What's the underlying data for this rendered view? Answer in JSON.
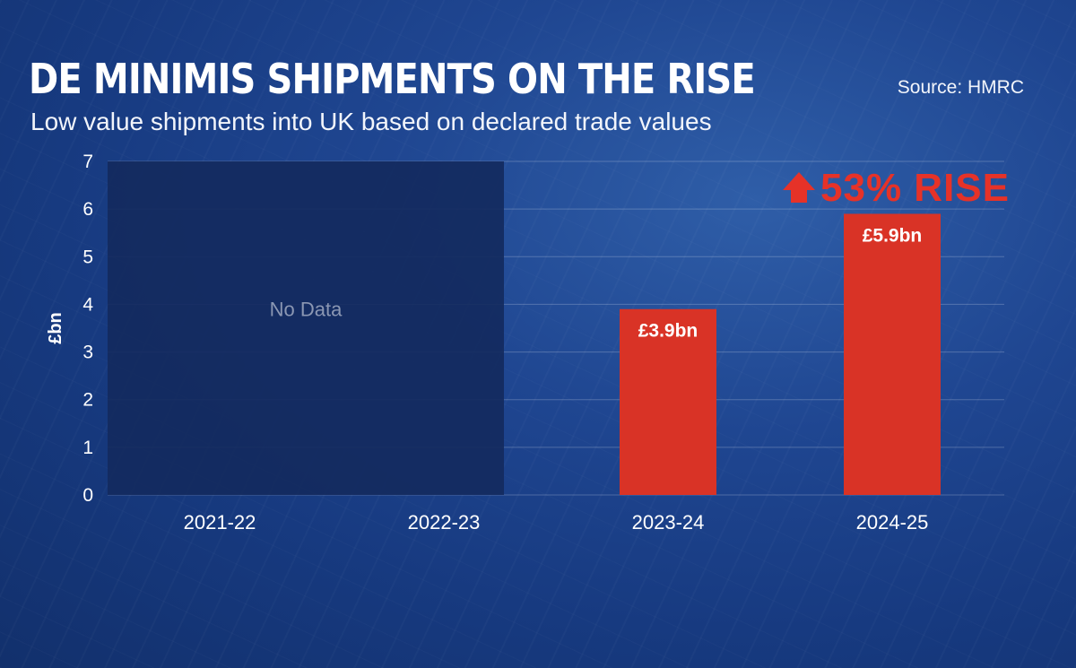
{
  "header": {
    "title": "DE MINIMIS SHIPMENTS ON THE RISE",
    "subtitle": "Low value shipments into UK based on declared trade values",
    "source": "Source: HMRC"
  },
  "colors": {
    "bar": "#d93326",
    "no_data_region": "#142a5e",
    "callout": "#e63228",
    "background": "#1f4691"
  },
  "chart_data": {
    "type": "bar",
    "categories": [
      "2021-22",
      "2022-23",
      "2023-24",
      "2024-25"
    ],
    "values": [
      null,
      null,
      3.9,
      5.9
    ],
    "data_labels": [
      "",
      "",
      "£3.9bn",
      "£5.9bn"
    ],
    "no_data_categories": [
      "2021-22",
      "2022-23"
    ],
    "no_data_label": "No Data",
    "ylabel": "£bn",
    "ylim": [
      0,
      7
    ],
    "yticks": [
      0,
      1,
      2,
      3,
      4,
      5,
      6,
      7
    ],
    "grid": true,
    "annotation": {
      "text": "53% RISE",
      "icon": "up-arrow-icon",
      "category": "2024-25"
    }
  }
}
